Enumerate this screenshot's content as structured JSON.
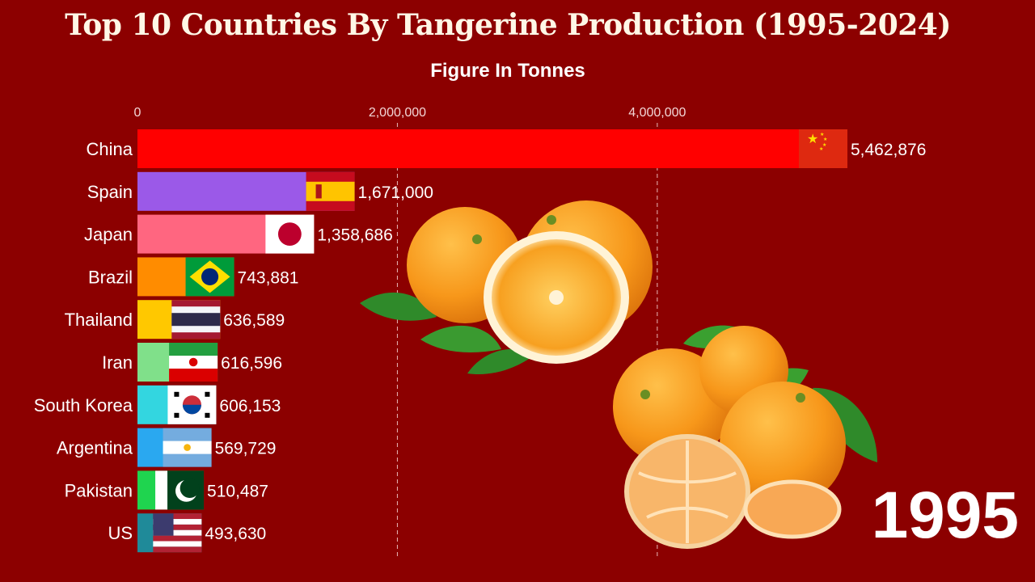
{
  "page": {
    "title": "Top 10 Countries By Tangerine Production (1995-2024)",
    "subtitle": "Figure In Tonnes",
    "year": "1995"
  },
  "colors": {
    "background": "#8c0000",
    "gridline": "#e8b8b8"
  },
  "chart_data": {
    "type": "bar",
    "orientation": "horizontal",
    "title": "Top 10 Countries By Tangerine Production (1995-2024)",
    "subtitle": "Figure In Tonnes",
    "xlim": [
      0,
      5600000
    ],
    "x_ticks": [
      0,
      2000000,
      4000000
    ],
    "x_tick_labels": [
      "0",
      "2,000,000",
      "4,000,000"
    ],
    "grid": "vertical dashed",
    "categories": [
      "China",
      "Spain",
      "Japan",
      "Brazil",
      "Thailand",
      "Iran",
      "South Korea",
      "Argentina",
      "Pakistan",
      "US"
    ],
    "values": [
      5462876,
      1671000,
      1358686,
      743881,
      636589,
      616596,
      606153,
      569729,
      510487,
      493630
    ],
    "value_labels": [
      "5,462,876",
      "1,671,000",
      "1,358,686",
      "743,881",
      "636,589",
      "616,596",
      "606,153",
      "569,729",
      "510,487",
      "493,630"
    ],
    "bar_colors": [
      "#ff0000",
      "#9b59e8",
      "#ff6680",
      "#ff8c00",
      "#ffc800",
      "#80e08a",
      "#33d6e0",
      "#2aa8f0",
      "#1fd44f",
      "#1f8a99"
    ],
    "flags": [
      "china-flag",
      "spain-flag",
      "japan-flag",
      "brazil-flag",
      "thailand-flag",
      "iran-flag",
      "south-korea-flag",
      "argentina-flag",
      "pakistan-flag",
      "usa-flag"
    ]
  }
}
